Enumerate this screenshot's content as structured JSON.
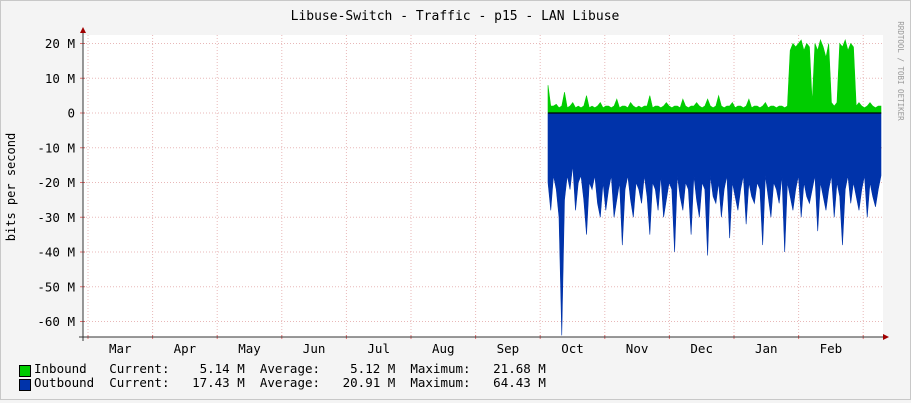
{
  "chart_data": {
    "type": "area",
    "title": "Libuse-Switch - Traffic - p15 - LAN Libuse",
    "ylabel": "bits per second",
    "side_label": "RRDTOOL / TOBI OETIKER",
    "x_ticks": [
      "Mar",
      "Apr",
      "May",
      "Jun",
      "Jul",
      "Aug",
      "Sep",
      "Oct",
      "Nov",
      "Dec",
      "Jan",
      "Feb"
    ],
    "y_ticks": [
      "20 M",
      "10 M",
      "0",
      "-10 M",
      "-20 M",
      "-30 M",
      "-40 M",
      "-50 M",
      "-60 M"
    ],
    "ylim": [
      -65,
      23
    ],
    "grid": true,
    "data_start": "Sep 24",
    "series": [
      {
        "name": "Inbound",
        "color": "#00cc00",
        "stats": {
          "current": "5.14 M",
          "average": "5.12 M",
          "maximum": "21.68 M"
        },
        "values_M": [
          8,
          2,
          2,
          2.5,
          1.5,
          2,
          6,
          1.5,
          2,
          3,
          1.5,
          2,
          1.5,
          2,
          5,
          1.5,
          2,
          1.5,
          2,
          3,
          1.5,
          2,
          2,
          1.5,
          2,
          4,
          1.5,
          2,
          2,
          1.5,
          3,
          2,
          1.5,
          2,
          1.5,
          2,
          2,
          5,
          1.5,
          2,
          2,
          1.5,
          2,
          3,
          2,
          1.5,
          2,
          2,
          1.5,
          4,
          2,
          1.5,
          2,
          2,
          3,
          2,
          1.5,
          2,
          4,
          2,
          1.5,
          2,
          5,
          2,
          1.5,
          2,
          2,
          3,
          1.5,
          2,
          2,
          1.5,
          2,
          4,
          1.5,
          2,
          2,
          1.5,
          2,
          3,
          1.5,
          2,
          2,
          1.5,
          2,
          2,
          1.5,
          2,
          18,
          20,
          19,
          20,
          21,
          18,
          20,
          19,
          3,
          20,
          18,
          21,
          19,
          16,
          20,
          3,
          2,
          3,
          20,
          19,
          21,
          18,
          20,
          19,
          2,
          3,
          2,
          1.5,
          2,
          3,
          2,
          1.5,
          2,
          2
        ]
      },
      {
        "name": "Outbound",
        "color": "#0033aa",
        "stats": {
          "current": "17.43 M",
          "average": "20.91 M",
          "maximum": "64.43 M"
        },
        "values_M": [
          -20,
          -28,
          -18,
          -22,
          -30,
          -64,
          -25,
          -18,
          -22,
          -15,
          -28,
          -20,
          -18,
          -25,
          -35,
          -20,
          -22,
          -18,
          -26,
          -30,
          -20,
          -28,
          -22,
          -18,
          -30,
          -25,
          -20,
          -38,
          -22,
          -18,
          -25,
          -30,
          -20,
          -22,
          -26,
          -18,
          -24,
          -35,
          -20,
          -22,
          -28,
          -18,
          -30,
          -25,
          -20,
          -22,
          -40,
          -18,
          -24,
          -28,
          -20,
          -22,
          -35,
          -18,
          -25,
          -30,
          -20,
          -22,
          -41,
          -18,
          -24,
          -26,
          -20,
          -30,
          -22,
          -18,
          -36,
          -20,
          -24,
          -28,
          -22,
          -18,
          -32,
          -20,
          -24,
          -26,
          -20,
          -22,
          -38,
          -18,
          -24,
          -30,
          -20,
          -22,
          -26,
          -18,
          -40,
          -20,
          -24,
          -28,
          -22,
          -18,
          -30,
          -20,
          -24,
          -26,
          -22,
          -18,
          -34,
          -20,
          -24,
          -28,
          -22,
          -18,
          -30,
          -20,
          -24,
          -38,
          -22,
          -18,
          -26,
          -20,
          -24,
          -28,
          -22,
          -18,
          -30,
          -20,
          -24,
          -27,
          -22,
          -18
        ]
      }
    ],
    "legend_labels": {
      "current": "Current:",
      "average": "Average:",
      "maximum": "Maximum:"
    }
  }
}
